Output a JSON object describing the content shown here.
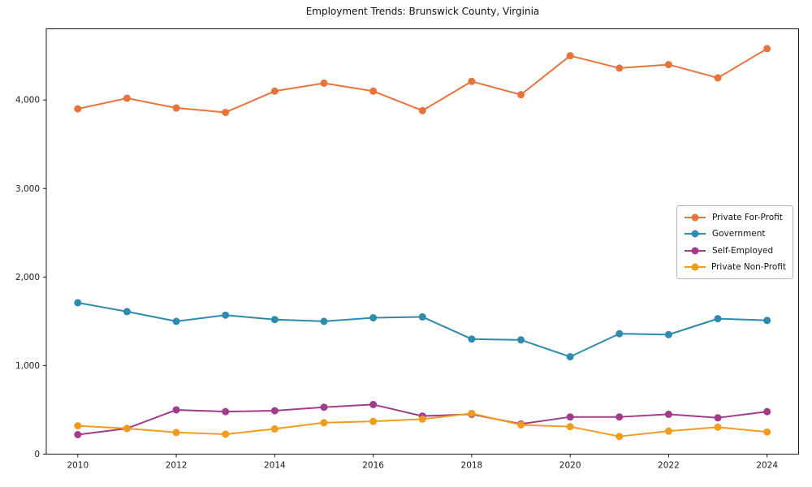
{
  "chart_data": {
    "type": "line",
    "title": "Employment Trends: Brunswick County, Virginia",
    "xlabel": "",
    "ylabel": "",
    "x": [
      2010,
      2011,
      2012,
      2013,
      2014,
      2015,
      2016,
      2017,
      2018,
      2019,
      2020,
      2021,
      2022,
      2023,
      2024
    ],
    "series": [
      {
        "name": "Private For-Profit",
        "color": "#E8743B",
        "values": [
          3900,
          4020,
          3910,
          3860,
          4100,
          4190,
          4100,
          3880,
          4210,
          4060,
          4500,
          4360,
          4400,
          4250,
          4580
        ]
      },
      {
        "name": "Government",
        "color": "#2E8BAD",
        "values": [
          1710,
          1610,
          1500,
          1570,
          1520,
          1500,
          1540,
          1550,
          1300,
          1290,
          1100,
          1360,
          1350,
          1530,
          1510
        ]
      },
      {
        "name": "Self-Employed",
        "color": "#A23B8B",
        "values": [
          220,
          290,
          500,
          480,
          490,
          530,
          560,
          430,
          450,
          340,
          420,
          420,
          450,
          410,
          480
        ]
      },
      {
        "name": "Private Non-Profit",
        "color": "#F09C1F",
        "values": [
          320,
          290,
          245,
          225,
          285,
          355,
          370,
          395,
          460,
          330,
          310,
          200,
          260,
          305,
          250
        ]
      }
    ],
    "xlim": [
      2009.36,
      2024.64
    ],
    "ylim": [
      0,
      4804
    ],
    "xticks": {
      "values": [
        2010,
        2012,
        2014,
        2016,
        2018,
        2020,
        2022,
        2024
      ],
      "labels": [
        "2010",
        "2012",
        "2014",
        "2016",
        "2018",
        "2020",
        "2022",
        "2024"
      ]
    },
    "yticks": {
      "values": [
        0,
        1000,
        2000,
        3000,
        4000
      ],
      "labels": [
        "0",
        "1,000",
        "2,000",
        "3,000",
        "4,000"
      ]
    },
    "grid": false,
    "marker": "circle",
    "legend_position": "center-right",
    "axis_color": "#1a1a1a",
    "background_color": "#ffffff"
  }
}
